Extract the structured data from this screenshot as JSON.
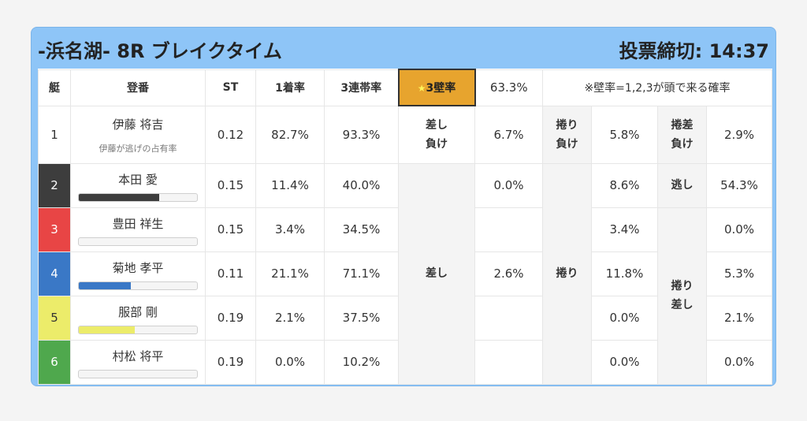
{
  "header": {
    "title": "-浜名湖- 8R ブレイクタイム",
    "deadline": "投票締切: 14:37"
  },
  "columns": {
    "boat": "艇",
    "racer": "登番",
    "st": "ST",
    "first_rate": "1着率",
    "top3_rate": "3連帯率",
    "wall_label": "3壁率",
    "wall_star": "★",
    "wall_value": "63.3%",
    "wall_note": "※壁率=1,2,3が頭で来る確率"
  },
  "kimarite": {
    "sashi_make": [
      "差し",
      "負け"
    ],
    "makuri_make": [
      "捲り",
      "負け"
    ],
    "makurizashi_make": [
      "捲差",
      "負け"
    ],
    "nige": "逃し",
    "sashi": "差し",
    "makuri": "捲り",
    "makurizashi": [
      "捲り",
      "差し"
    ]
  },
  "racers": [
    {
      "boat": "1",
      "name": "伊藤 将吉",
      "sub": "伊藤が逃げの占有率",
      "st": "0.12",
      "first": "82.7%",
      "top3": "93.3%",
      "sashi_pct": "6.7%",
      "makuri_pct": "5.8%",
      "makurizashi_pct": "2.9%",
      "color": "#ffffff"
    },
    {
      "boat": "2",
      "name": "本田 愛",
      "st": "0.15",
      "first": "11.4%",
      "top3": "40.0%",
      "sashi_pct": "0.0%",
      "makuri_pct": "8.6%",
      "makurizashi_pct": "54.3%",
      "bar_pct": 68,
      "color": "#3d3d3d"
    },
    {
      "boat": "3",
      "name": "豊田 祥生",
      "st": "0.15",
      "first": "3.4%",
      "top3": "34.5%",
      "sashi_pct": "",
      "makuri_pct": "3.4%",
      "makurizashi_pct": "0.0%",
      "bar_pct": 0,
      "color": "#e84545"
    },
    {
      "boat": "4",
      "name": "菊地 孝平",
      "st": "0.11",
      "first": "21.1%",
      "top3": "71.1%",
      "sashi_pct": "2.6%",
      "makuri_pct": "11.8%",
      "makurizashi_pct": "5.3%",
      "bar_pct": 44,
      "color": "#3a78c6"
    },
    {
      "boat": "5",
      "name": "服部 剛",
      "st": "0.19",
      "first": "2.1%",
      "top3": "37.5%",
      "sashi_pct": "",
      "makuri_pct": "0.0%",
      "makurizashi_pct": "2.1%",
      "bar_pct": 47,
      "color": "#ecec6a"
    },
    {
      "boat": "6",
      "name": "村松 将平",
      "st": "0.19",
      "first": "0.0%",
      "top3": "10.2%",
      "sashi_pct": "",
      "makuri_pct": "0.0%",
      "makurizashi_pct": "0.0%",
      "bar_pct": 0,
      "color": "#4fa84d"
    }
  ]
}
